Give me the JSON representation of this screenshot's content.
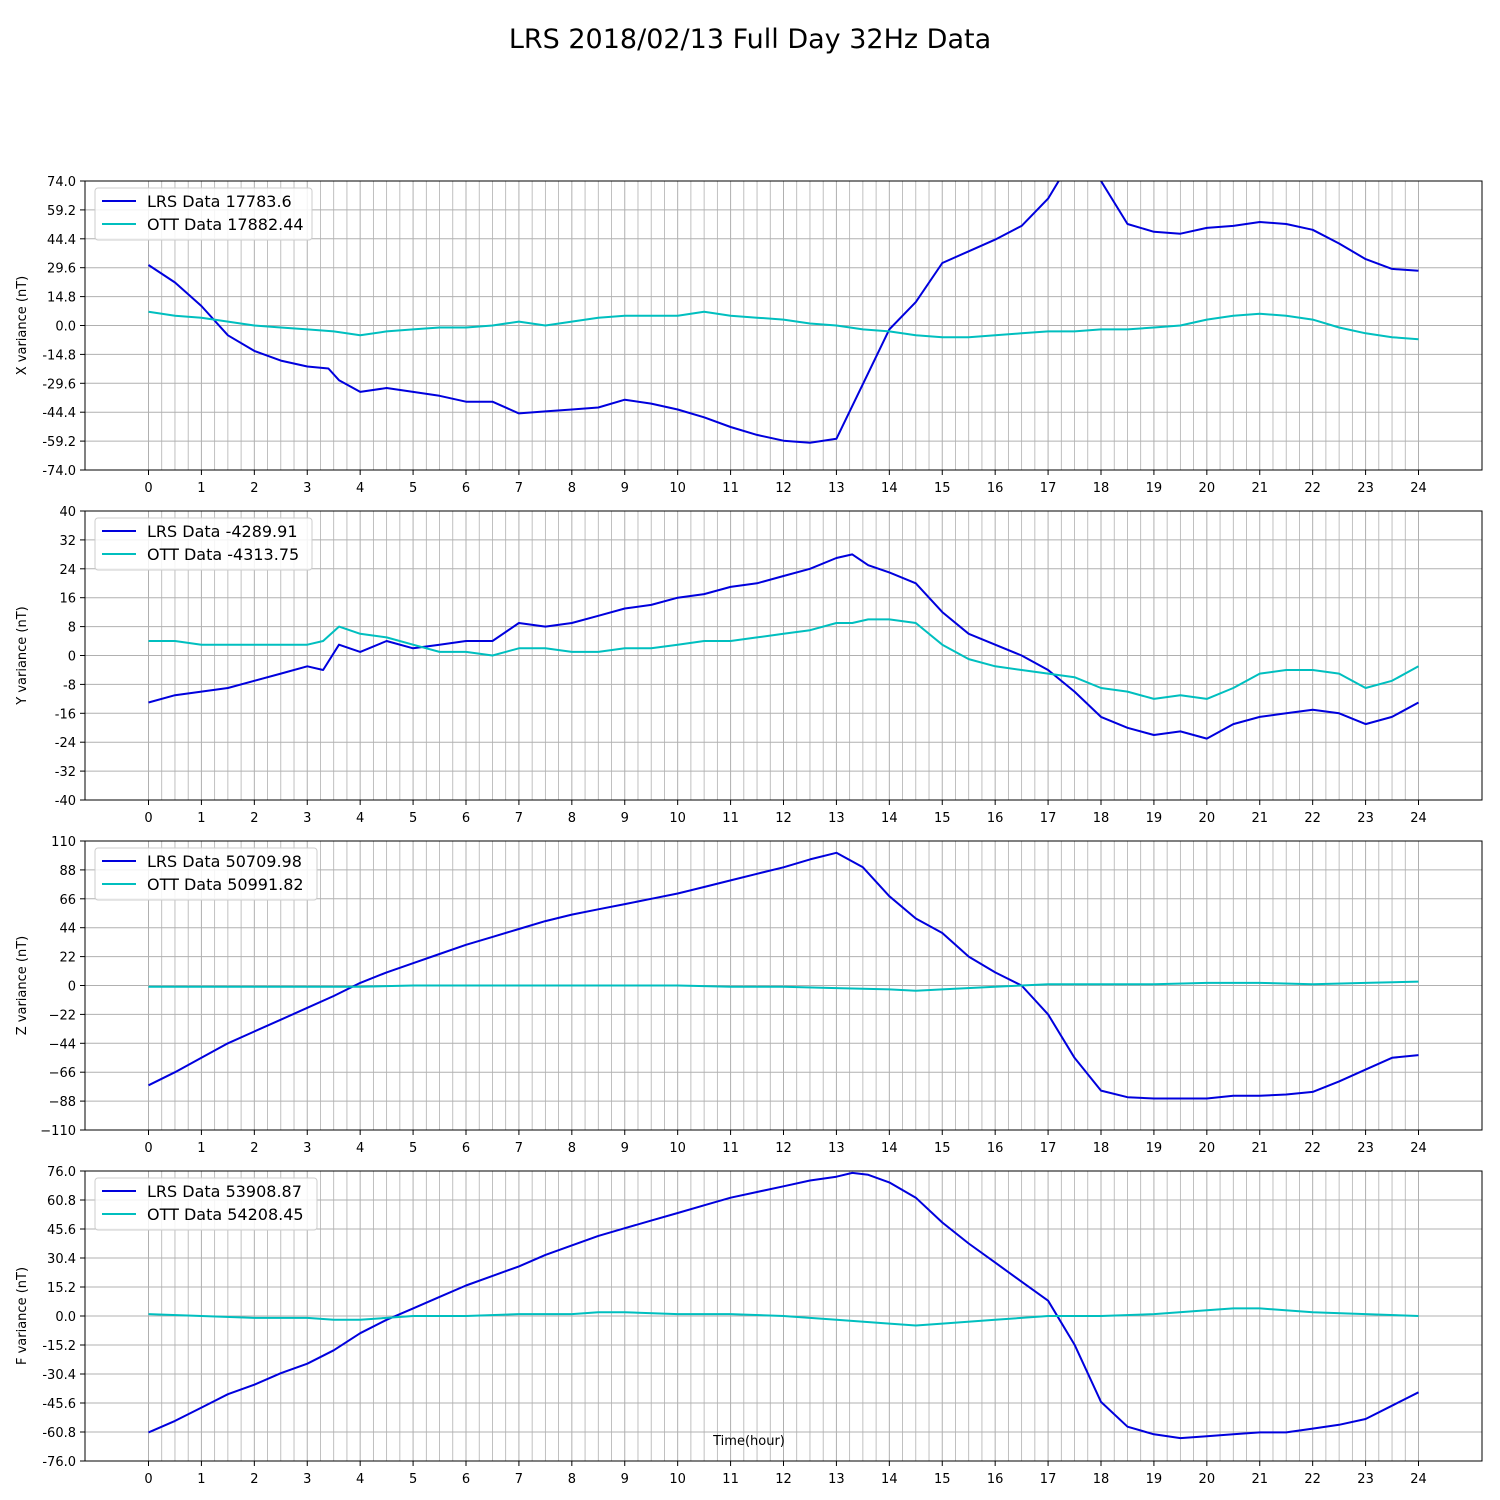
{
  "title": "LRS 2018/02/13 Full Day 32Hz Data",
  "xlabel": "Time(hour)",
  "colors": {
    "lrs": "#0000dd",
    "ott": "#00bfbf",
    "grid": "#b0b0b0"
  },
  "chart_data": [
    {
      "type": "line",
      "panel": "X",
      "ylabel": "X variance (nT)",
      "xlim": [
        -1.2,
        25.2
      ],
      "ylim": [
        -74.0,
        74.0
      ],
      "yticks": [
        "74.0",
        "59.2",
        "44.4",
        "29.6",
        "14.8",
        "0.0",
        "-14.8",
        "-29.6",
        "-44.4",
        "-59.2",
        "-74.0"
      ],
      "xticks": [
        "0",
        "1",
        "2",
        "3",
        "4",
        "5",
        "6",
        "7",
        "8",
        "9",
        "10",
        "11",
        "12",
        "13",
        "14",
        "15",
        "16",
        "17",
        "18",
        "19",
        "20",
        "21",
        "22",
        "23",
        "24"
      ],
      "grid": true,
      "legend": "top-left",
      "series": [
        {
          "name": "LRS Data 17783.6",
          "x": [
            0,
            0.5,
            1,
            1.5,
            2,
            2.5,
            3,
            3.4,
            3.6,
            4,
            4.5,
            5,
            5.5,
            6,
            6.5,
            7,
            7.5,
            8,
            8.5,
            9,
            9.5,
            10,
            10.5,
            11,
            11.5,
            12,
            12.5,
            13,
            13.5,
            14,
            14.5,
            15,
            15.5,
            16,
            16.5,
            17,
            17.2,
            17.5,
            18,
            18.5,
            19,
            19.5,
            20,
            20.5,
            21,
            21.5,
            22,
            22.5,
            23,
            23.5,
            24
          ],
          "y": [
            31,
            22,
            10,
            -5,
            -13,
            -18,
            -21,
            -22,
            -28,
            -34,
            -32,
            -34,
            -36,
            -39,
            -39,
            -45,
            -44,
            -43,
            -42,
            -38,
            -40,
            -43,
            -47,
            -52,
            -56,
            -59,
            -60,
            -58,
            -30,
            -2,
            12,
            32,
            38,
            44,
            51,
            65,
            74,
            85,
            74,
            52,
            48,
            47,
            50,
            51,
            53,
            52,
            49,
            42,
            34,
            29,
            28
          ]
        },
        {
          "name": "OTT Data 17882.44",
          "x": [
            0,
            0.5,
            1,
            1.5,
            2,
            2.5,
            3,
            3.5,
            4,
            4.5,
            5,
            5.5,
            6,
            6.5,
            7,
            7.5,
            8,
            8.5,
            9,
            9.5,
            10,
            10.5,
            11,
            11.5,
            12,
            12.5,
            13,
            13.5,
            14,
            14.5,
            15,
            15.5,
            16,
            16.5,
            17,
            17.5,
            18,
            18.5,
            19,
            19.5,
            20,
            20.5,
            21,
            21.5,
            22,
            22.5,
            23,
            23.5,
            24
          ],
          "y": [
            7,
            5,
            4,
            2,
            0,
            -1,
            -2,
            -3,
            -5,
            -3,
            -2,
            -1,
            -1,
            0,
            2,
            0,
            2,
            4,
            5,
            5,
            5,
            7,
            5,
            4,
            3,
            1,
            0,
            -2,
            -3,
            -5,
            -6,
            -6,
            -5,
            -4,
            -3,
            -3,
            -2,
            -2,
            -1,
            0,
            3,
            5,
            6,
            5,
            3,
            -1,
            -4,
            -6,
            -7
          ]
        }
      ]
    },
    {
      "type": "line",
      "panel": "Y",
      "ylabel": "Y variance (nT)",
      "xlim": [
        -1.2,
        25.2
      ],
      "ylim": [
        -40,
        40
      ],
      "yticks": [
        "40",
        "32",
        "24",
        "16",
        "8",
        "0",
        "-8",
        "-16",
        "-24",
        "-32",
        "-40"
      ],
      "xticks": [
        "0",
        "1",
        "2",
        "3",
        "4",
        "5",
        "6",
        "7",
        "8",
        "9",
        "10",
        "11",
        "12",
        "13",
        "14",
        "15",
        "16",
        "17",
        "18",
        "19",
        "20",
        "21",
        "22",
        "23",
        "24"
      ],
      "grid": true,
      "legend": "top-left",
      "series": [
        {
          "name": "LRS Data -4289.91",
          "x": [
            0,
            0.5,
            1,
            1.5,
            2,
            2.5,
            3,
            3.3,
            3.6,
            4,
            4.5,
            5,
            5.5,
            6,
            6.5,
            7,
            7.5,
            8,
            8.5,
            9,
            9.5,
            10,
            10.5,
            11,
            11.5,
            12,
            12.5,
            13,
            13.3,
            13.6,
            14,
            14.5,
            15,
            15.5,
            16,
            16.5,
            17,
            17.5,
            18,
            18.5,
            19,
            19.5,
            20,
            20.5,
            21,
            21.5,
            22,
            22.5,
            23,
            23.5,
            24
          ],
          "y": [
            -13,
            -11,
            -10,
            -9,
            -7,
            -5,
            -3,
            -4,
            3,
            1,
            4,
            2,
            3,
            4,
            4,
            9,
            8,
            9,
            11,
            13,
            14,
            16,
            17,
            19,
            20,
            22,
            24,
            27,
            28,
            25,
            23,
            20,
            12,
            6,
            3,
            0,
            -4,
            -10,
            -17,
            -20,
            -22,
            -21,
            -23,
            -19,
            -17,
            -16,
            -15,
            -16,
            -19,
            -17,
            -13
          ]
        },
        {
          "name": "OTT Data -4313.75",
          "x": [
            0,
            0.5,
            1,
            1.5,
            2,
            2.5,
            3,
            3.3,
            3.6,
            4,
            4.5,
            5,
            5.5,
            6,
            6.5,
            7,
            7.5,
            8,
            8.5,
            9,
            9.5,
            10,
            10.5,
            11,
            11.5,
            12,
            12.5,
            13,
            13.3,
            13.6,
            14,
            14.5,
            15,
            15.5,
            16,
            16.5,
            17,
            17.5,
            18,
            18.5,
            19,
            19.5,
            20,
            20.5,
            21,
            21.5,
            22,
            22.5,
            23,
            23.5,
            24
          ],
          "y": [
            4,
            4,
            3,
            3,
            3,
            3,
            3,
            4,
            8,
            6,
            5,
            3,
            1,
            1,
            0,
            2,
            2,
            1,
            1,
            2,
            2,
            3,
            4,
            4,
            5,
            6,
            7,
            9,
            9,
            10,
            10,
            9,
            3,
            -1,
            -3,
            -4,
            -5,
            -6,
            -9,
            -10,
            -12,
            -11,
            -12,
            -9,
            -5,
            -4,
            -4,
            -5,
            -9,
            -7,
            -3
          ]
        }
      ]
    },
    {
      "type": "line",
      "panel": "Z",
      "ylabel": "Z variance (nT)",
      "xlim": [
        -1.2,
        25.2
      ],
      "ylim": [
        -110,
        110
      ],
      "yticks": [
        "110",
        "88",
        "66",
        "44",
        "22",
        "0",
        "−22",
        "−44",
        "−66",
        "−88",
        "−110"
      ],
      "xticks": [
        "0",
        "1",
        "2",
        "3",
        "4",
        "5",
        "6",
        "7",
        "8",
        "9",
        "10",
        "11",
        "12",
        "13",
        "14",
        "15",
        "16",
        "17",
        "18",
        "19",
        "20",
        "21",
        "22",
        "23",
        "24"
      ],
      "grid": true,
      "legend": "top-left",
      "series": [
        {
          "name": "LRS Data 50709.98",
          "x": [
            0,
            0.5,
            1,
            1.5,
            2,
            2.5,
            3,
            3.5,
            4,
            4.5,
            5,
            5.5,
            6,
            6.5,
            7,
            7.5,
            8,
            8.5,
            9,
            9.5,
            10,
            10.5,
            11,
            11.5,
            12,
            12.5,
            13,
            13.5,
            14,
            14.5,
            15,
            15.5,
            16,
            16.5,
            17,
            17.5,
            18,
            18.5,
            19,
            19.5,
            20,
            20.5,
            21,
            21.5,
            22,
            22.5,
            23,
            23.5,
            24
          ],
          "y": [
            -76,
            -66,
            -55,
            -44,
            -35,
            -26,
            -17,
            -8,
            2,
            10,
            17,
            24,
            31,
            37,
            43,
            49,
            54,
            58,
            62,
            66,
            70,
            75,
            80,
            85,
            90,
            96,
            101,
            90,
            68,
            51,
            40,
            22,
            10,
            0,
            -22,
            -55,
            -80,
            -85,
            -86,
            -86,
            -86,
            -84,
            -84,
            -83,
            -81,
            -73,
            -64,
            -55,
            -53
          ]
        },
        {
          "name": "OTT Data 50991.82",
          "x": [
            0,
            1,
            2,
            3,
            4,
            5,
            6,
            7,
            8,
            9,
            10,
            11,
            12,
            13,
            14,
            14.5,
            15,
            16,
            17,
            18,
            19,
            20,
            21,
            22,
            23,
            24
          ],
          "y": [
            -1,
            -1,
            -1,
            -1,
            -1,
            0,
            0,
            0,
            0,
            0,
            0,
            -1,
            -1,
            -2,
            -3,
            -4,
            -3,
            -1,
            1,
            1,
            1,
            2,
            2,
            1,
            2,
            3
          ]
        }
      ]
    },
    {
      "type": "line",
      "panel": "F",
      "ylabel": "F variance (nT)",
      "xlim": [
        -1.2,
        25.2
      ],
      "ylim": [
        -76.0,
        76.0
      ],
      "yticks": [
        "76.0",
        "60.8",
        "45.6",
        "30.4",
        "15.2",
        "0.0",
        "-15.2",
        "-30.4",
        "-45.6",
        "-60.8",
        "-76.0"
      ],
      "xticks": [
        "0",
        "1",
        "2",
        "3",
        "4",
        "5",
        "6",
        "7",
        "8",
        "9",
        "10",
        "11",
        "12",
        "13",
        "14",
        "15",
        "16",
        "17",
        "18",
        "19",
        "20",
        "21",
        "22",
        "23",
        "24"
      ],
      "grid": true,
      "legend": "top-left",
      "series": [
        {
          "name": "LRS Data 53908.87",
          "x": [
            0,
            0.5,
            1,
            1.5,
            2,
            2.5,
            3,
            3.5,
            4,
            4.5,
            5,
            5.5,
            6,
            6.5,
            7,
            7.5,
            8,
            8.5,
            9,
            9.5,
            10,
            10.5,
            11,
            11.5,
            12,
            12.5,
            13,
            13.3,
            13.6,
            14,
            14.5,
            15,
            15.5,
            16,
            16.5,
            17,
            17.5,
            18,
            18.5,
            19,
            19.5,
            20,
            20.5,
            21,
            21.5,
            22,
            22.5,
            23,
            23.5,
            24
          ],
          "y": [
            -61,
            -55,
            -48,
            -41,
            -36,
            -30,
            -25,
            -18,
            -9,
            -2,
            4,
            10,
            16,
            21,
            26,
            32,
            37,
            42,
            46,
            50,
            54,
            58,
            62,
            65,
            68,
            71,
            73,
            75,
            74,
            70,
            62,
            49,
            38,
            28,
            18,
            8,
            -15,
            -45,
            -58,
            -62,
            -64,
            -63,
            -62,
            -61,
            -61,
            -59,
            -57,
            -54,
            -47,
            -40
          ]
        },
        {
          "name": "OTT Data 54208.45",
          "x": [
            0,
            1,
            2,
            3,
            3.5,
            4,
            5,
            6,
            7,
            8,
            8.5,
            9,
            10,
            11,
            12,
            13,
            14,
            14.5,
            15,
            16,
            17,
            18,
            19,
            20,
            20.5,
            21,
            22,
            23,
            24
          ],
          "y": [
            1,
            0,
            -1,
            -1,
            -2,
            -2,
            0,
            0,
            1,
            1,
            2,
            2,
            1,
            1,
            0,
            -2,
            -4,
            -5,
            -4,
            -2,
            0,
            0,
            1,
            3,
            4,
            4,
            2,
            1,
            0
          ]
        }
      ]
    }
  ]
}
